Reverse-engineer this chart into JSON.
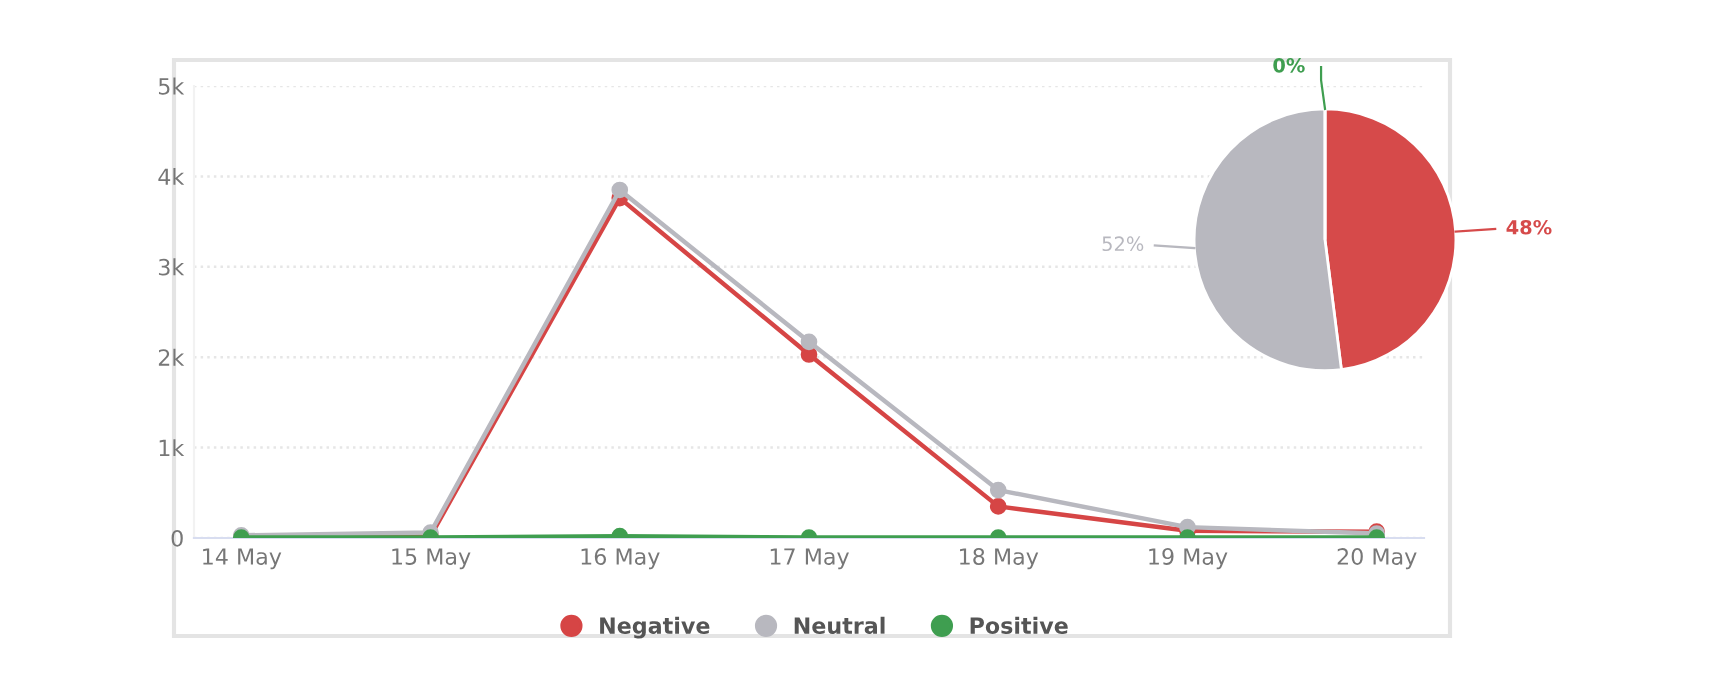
{
  "chart_data": [
    {
      "type": "line",
      "categories": [
        "14 May",
        "15 May",
        "16 May",
        "17 May",
        "18 May",
        "19 May",
        "20 May"
      ],
      "series": [
        {
          "name": "Negative",
          "color": "#d64545",
          "values": [
            10,
            20,
            3760,
            2030,
            350,
            80,
            70
          ]
        },
        {
          "name": "Neutral",
          "color": "#b8b8bf",
          "values": [
            30,
            60,
            3850,
            2170,
            530,
            120,
            50
          ]
        },
        {
          "name": "Positive",
          "color": "#3f9e50",
          "values": [
            5,
            5,
            20,
            5,
            5,
            5,
            5
          ]
        }
      ],
      "ylim": [
        0,
        5000
      ],
      "yticks": [
        {
          "value": 0,
          "label": "0"
        },
        {
          "value": 1000,
          "label": "1k"
        },
        {
          "value": 2000,
          "label": "2k"
        },
        {
          "value": 3000,
          "label": "3k"
        },
        {
          "value": 4000,
          "label": "4k"
        },
        {
          "value": 5000,
          "label": "5k"
        }
      ],
      "grid": "y",
      "legend": "bottom",
      "marker": "circle",
      "line_style": "solid"
    },
    {
      "type": "pie",
      "categories": [
        null,
        null,
        null
      ],
      "values": [
        48,
        52,
        0
      ],
      "colors": [
        "#d64a4a",
        "#b8b8bf",
        "#3f9e50"
      ],
      "value_labels": [
        "48%",
        "52%",
        "0%"
      ]
    }
  ]
}
